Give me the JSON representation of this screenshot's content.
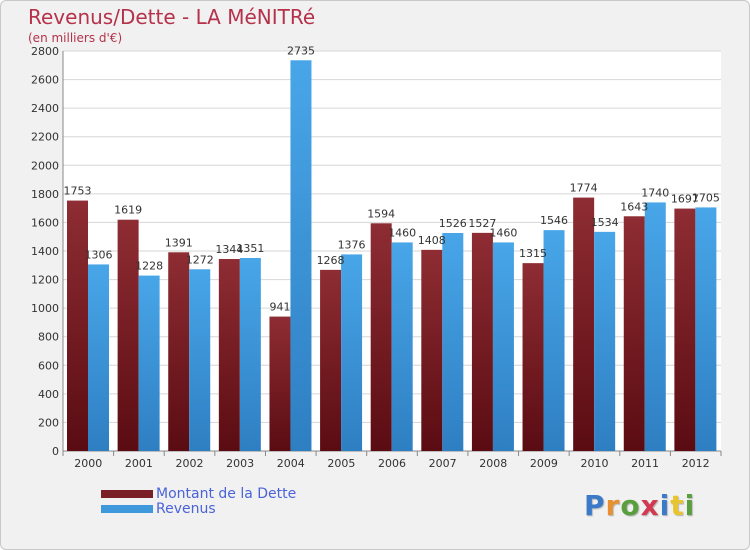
{
  "chart_data": {
    "type": "bar",
    "title": "Revenus/Dette - LA MéNITRé",
    "subtitle": "(en milliers d'€)",
    "categories": [
      "2000",
      "2001",
      "2002",
      "2003",
      "2004",
      "2005",
      "2006",
      "2007",
      "2008",
      "2009",
      "2010",
      "2011",
      "2012"
    ],
    "series": [
      {
        "name": "Montant de la Dette",
        "values": [
          1753,
          1619,
          1391,
          1344,
          941,
          1268,
          1594,
          1408,
          1527,
          1315,
          1774,
          1643,
          1697
        ],
        "labels": [
          "1753",
          "1619",
          "1391",
          "1344",
          "941",
          "1268",
          "1594",
          "1408",
          "1527",
          "1315",
          "1774",
          "1643",
          "1697"
        ],
        "color": "#7a1f26"
      },
      {
        "name": "Revenus",
        "values": [
          1306,
          1228,
          1272,
          1351,
          2735,
          1376,
          1460,
          1526,
          1460,
          1546,
          1534,
          1740,
          1705
        ],
        "labels": [
          "1306",
          "1228",
          "1272",
          "1351",
          "2735",
          "1376",
          "1460",
          "1526",
          "1460",
          "1546",
          "1534",
          "1740",
          "1705"
        ],
        "color": "#3f98dc"
      }
    ],
    "ylim": [
      0,
      2800
    ],
    "yticks": [
      "0",
      "200",
      "400",
      "600",
      "800",
      "1000",
      "1200",
      "1400",
      "1600",
      "1800",
      "2000",
      "2200",
      "2400",
      "2600",
      "2800"
    ],
    "grid": true,
    "legend_position": "bottom-left"
  },
  "logo": {
    "text": "Proxiti",
    "letters": [
      "P",
      "r",
      "o",
      "x",
      "i",
      "t",
      "i"
    ]
  }
}
